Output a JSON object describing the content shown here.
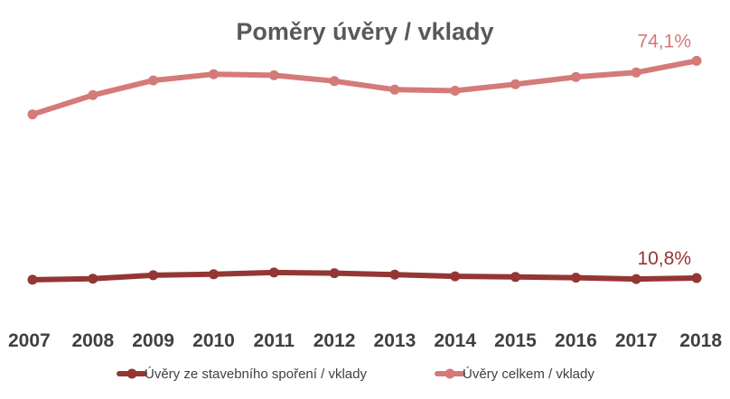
{
  "chart_data": {
    "type": "line",
    "title": "Poměry úvěry / vklady",
    "categories": [
      "2007",
      "2008",
      "2009",
      "2010",
      "2011",
      "2012",
      "2013",
      "2014",
      "2015",
      "2016",
      "2017",
      "2018"
    ],
    "series": [
      {
        "name": "Úvěry ze stavebního spoření / vklady",
        "color": "#943634",
        "values": [
          10.3,
          10.6,
          11.6,
          11.9,
          12.4,
          12.2,
          11.8,
          11.3,
          11.1,
          10.9,
          10.5,
          10.8
        ],
        "end_label": "10,8%"
      },
      {
        "name": "Úvěry celkem / vklady",
        "color": "#D47A78",
        "values": [
          58.5,
          64.1,
          68.4,
          70.2,
          69.9,
          68.2,
          65.7,
          65.4,
          67.3,
          69.4,
          70.7,
          74.1
        ],
        "end_label": "74,1%"
      }
    ],
    "ylim": [
      5,
      80
    ],
    "grid": false,
    "legend_position": "bottom"
  }
}
